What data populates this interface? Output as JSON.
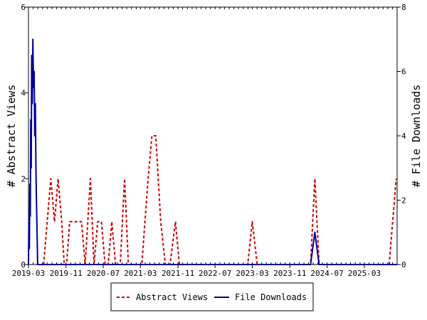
{
  "colors": {
    "abstract_views": "#cc0000",
    "file_downloads": "#000099",
    "axis": "#000000",
    "background": "#ffffff"
  },
  "chart_data": {
    "type": "line",
    "title": "",
    "xlabel": "",
    "ylabel_left": "# Abstract Views",
    "ylabel_right": "# File Downloads",
    "ylim_left": [
      0,
      6
    ],
    "ylim_right": [
      0,
      8
    ],
    "yticks_left": [
      "0",
      "2",
      "4",
      "6"
    ],
    "yticks_right": [
      "0",
      "2",
      "4",
      "6",
      "8"
    ],
    "xlim": [
      "2019-03",
      "2025-10"
    ],
    "xticks": [
      "2019-03",
      "2019-11",
      "2020-07",
      "2021-03",
      "2021-11",
      "2022-07",
      "2023-03",
      "2023-11",
      "2024-07",
      "2025-03"
    ],
    "grid": false,
    "legend_position": "bottom",
    "series": [
      {
        "name": "Abstract Views",
        "axis": "left",
        "style": "dashed",
        "points": [
          [
            "2019-06-08",
            0
          ],
          [
            "2019-07-01",
            1
          ],
          [
            "2019-07-25",
            2
          ],
          [
            "2019-08-18",
            1
          ],
          [
            "2019-09-10",
            2
          ],
          [
            "2019-10-04",
            1
          ],
          [
            "2019-10-20",
            0
          ],
          [
            "2019-11-05",
            0
          ],
          [
            "2019-11-25",
            1
          ],
          [
            "2019-12-30",
            1
          ],
          [
            "2020-02-10",
            1
          ],
          [
            "2020-03-05",
            0
          ],
          [
            "2020-04-08",
            2
          ],
          [
            "2020-05-02",
            0
          ],
          [
            "2020-05-26",
            1
          ],
          [
            "2020-06-19",
            1
          ],
          [
            "2020-07-13",
            0
          ],
          [
            "2020-08-02",
            0
          ],
          [
            "2020-08-26",
            1
          ],
          [
            "2020-09-19",
            0
          ],
          [
            "2020-10-20",
            0
          ],
          [
            "2020-11-17",
            2
          ],
          [
            "2020-12-12",
            0
          ],
          [
            "2021-01-10",
            0
          ],
          [
            "2021-03-10",
            0
          ],
          [
            "2021-04-20",
            2
          ],
          [
            "2021-05-15",
            3
          ],
          [
            "2021-06-09",
            3
          ],
          [
            "2021-07-11",
            1
          ],
          [
            "2021-08-10",
            0
          ],
          [
            "2021-09-10",
            0
          ],
          [
            "2021-10-15",
            1
          ],
          [
            "2021-11-10",
            0
          ],
          [
            "2023-01-30",
            0
          ],
          [
            "2023-03-01",
            1
          ],
          [
            "2023-04-02",
            0
          ],
          [
            "2024-03-15",
            0
          ],
          [
            "2024-04-12",
            2
          ],
          [
            "2024-05-10",
            0
          ],
          [
            "2025-08-10",
            0
          ],
          [
            "2025-09-25",
            2
          ]
        ]
      },
      {
        "name": "File Downloads",
        "axis": "right",
        "style": "solid",
        "points": [
          [
            "2019-03-01",
            0
          ],
          [
            "2019-03-04",
            1.5
          ],
          [
            "2019-03-07",
            0.5
          ],
          [
            "2019-03-10",
            2.5
          ],
          [
            "2019-03-13",
            1.5
          ],
          [
            "2019-03-16",
            4.5
          ],
          [
            "2019-03-19",
            3
          ],
          [
            "2019-03-22",
            6.5
          ],
          [
            "2019-03-26",
            5
          ],
          [
            "2019-03-30",
            7
          ],
          [
            "2019-04-03",
            5.5
          ],
          [
            "2019-04-07",
            6
          ],
          [
            "2019-04-11",
            4
          ],
          [
            "2019-04-15",
            5
          ],
          [
            "2019-04-19",
            3
          ],
          [
            "2019-04-22",
            2
          ],
          [
            "2019-04-26",
            1
          ],
          [
            "2019-04-30",
            0
          ],
          [
            "2024-03-15",
            0
          ],
          [
            "2024-04-12",
            1
          ],
          [
            "2024-05-10",
            0
          ],
          [
            "2025-09-30",
            0
          ]
        ]
      }
    ]
  }
}
